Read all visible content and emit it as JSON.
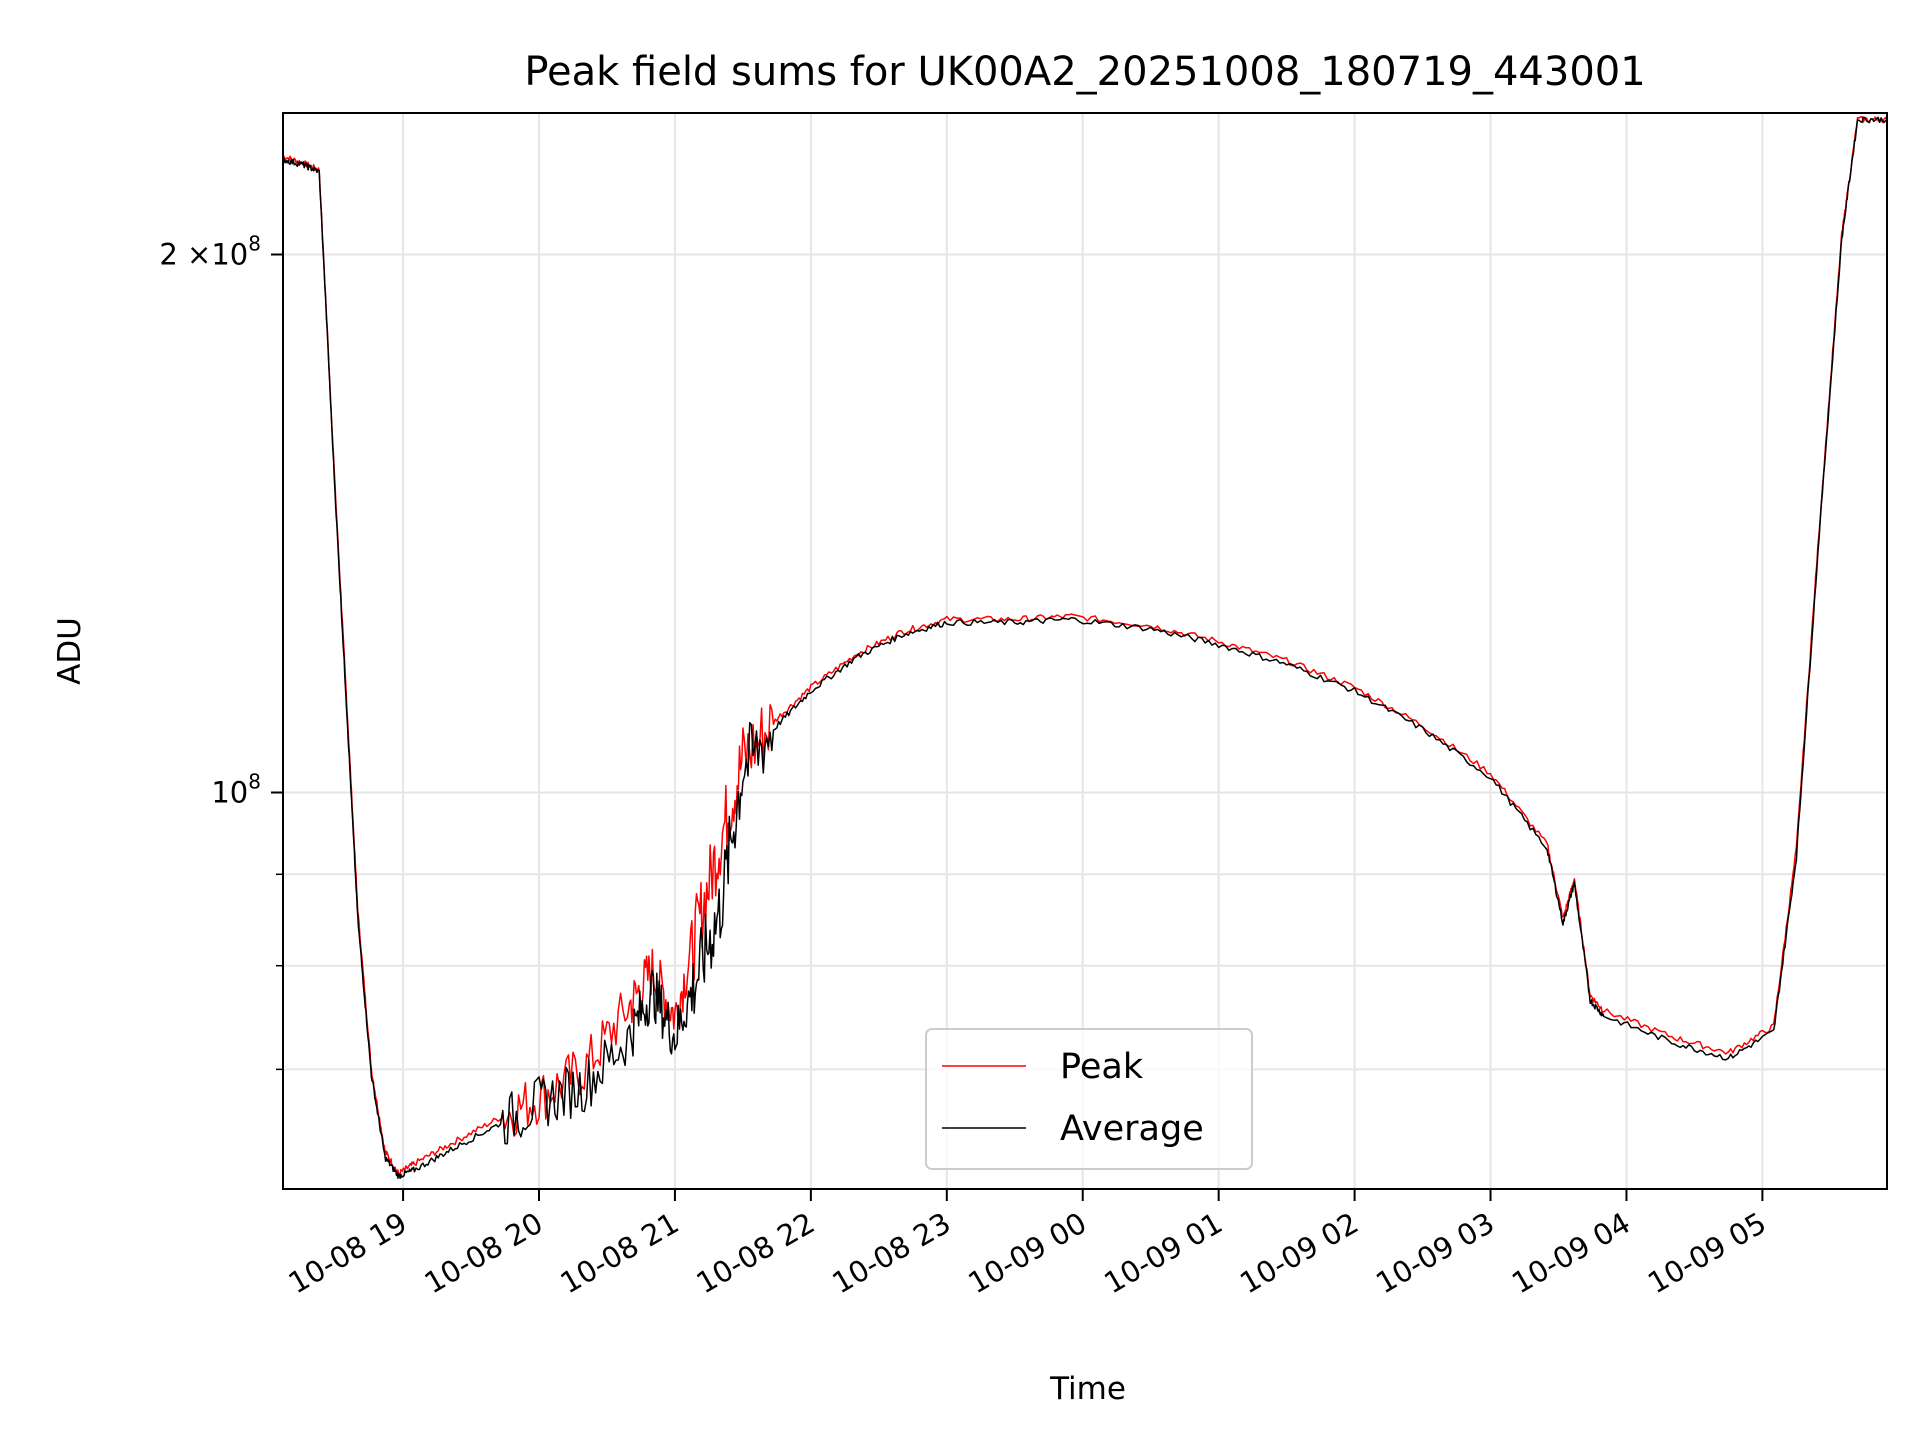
{
  "chart_data": {
    "type": "line",
    "title": "Peak field sums for UK00A2_20251008_180719_443001",
    "xlabel": "Time",
    "ylabel": "ADU",
    "yscale": "log",
    "grid": true,
    "legend": "lower-center",
    "xlim": [
      "2025-10-08 18:07",
      "2025-10-09 05:55"
    ],
    "ylim": [
      60000000,
      240000000
    ],
    "x_ticks": [
      "10-08 19",
      "10-08 20",
      "10-08 21",
      "10-08 22",
      "10-08 23",
      "10-09 00",
      "10-09 01",
      "10-09 02",
      "10-09 03",
      "10-09 04",
      "10-09 05"
    ],
    "x_tick_times": [
      "2025-10-08 19:00",
      "2025-10-08 20:00",
      "2025-10-08 21:00",
      "2025-10-08 22:00",
      "2025-10-08 23:00",
      "2025-10-09 00:00",
      "2025-10-09 01:00",
      "2025-10-09 02:00",
      "2025-10-09 03:00",
      "2025-10-09 04:00",
      "2025-10-09 05:00"
    ],
    "y_major_ticks": [
      {
        "value": 200000000,
        "mant": "2",
        "mid": "×10",
        "exp": "8"
      },
      {
        "value": 100000000,
        "mant": "",
        "mid": "10",
        "exp": "8"
      }
    ],
    "y_minor_ticks": [
      90000000,
      80000000,
      70000000
    ],
    "series": [
      {
        "name": "Peak",
        "color": "#ff0000",
        "x": [
          "2025-10-08 18:07",
          "2025-10-08 18:16",
          "2025-10-08 18:23",
          "2025-10-08 18:30",
          "2025-10-08 18:35",
          "2025-10-08 18:40",
          "2025-10-08 18:46",
          "2025-10-08 18:52",
          "2025-10-08 18:58",
          "2025-10-08 19:05",
          "2025-10-08 19:20",
          "2025-10-08 19:40",
          "2025-10-08 20:00",
          "2025-10-08 20:20",
          "2025-10-08 20:40",
          "2025-10-08 20:50",
          "2025-10-08 21:00",
          "2025-10-08 21:10",
          "2025-10-08 21:20",
          "2025-10-08 21:30",
          "2025-10-08 21:45",
          "2025-10-08 22:00",
          "2025-10-08 22:20",
          "2025-10-08 22:40",
          "2025-10-08 23:00",
          "2025-10-08 23:30",
          "2025-10-08 23:55",
          "2025-10-09 00:30",
          "2025-10-09 01:00",
          "2025-10-09 01:30",
          "2025-10-09 02:00",
          "2025-10-09 02:30",
          "2025-10-09 03:00",
          "2025-10-09 03:25",
          "2025-10-09 03:32",
          "2025-10-09 03:37",
          "2025-10-09 03:44",
          "2025-10-09 03:50",
          "2025-10-09 04:20",
          "2025-10-09 04:45",
          "2025-10-09 05:05",
          "2025-10-09 05:15",
          "2025-10-09 05:25",
          "2025-10-09 05:35",
          "2025-10-09 05:42",
          "2025-10-09 05:55"
        ],
        "values": [
          227000000,
          225000000,
          223000000,
          148000000,
          113000000,
          86000000,
          70000000,
          63000000,
          61200000,
          62000000,
          63500000,
          65500000,
          67500000,
          70000000,
          76000000,
          79500000,
          75000000,
          84000000,
          94000000,
          104500000,
          110000000,
          114500000,
          119500000,
          123000000,
          125000000,
          125000000,
          125500000,
          124000000,
          121500000,
          118500000,
          114500000,
          109000000,
          102500000,
          93500000,
          85000000,
          89500000,
          77000000,
          75500000,
          73000000,
          71500000,
          74000000,
          93000000,
          140000000,
          205000000,
          238000000,
          238000000
        ]
      },
      {
        "name": "Average",
        "color": "#000000",
        "x": [
          "2025-10-08 18:07",
          "2025-10-08 18:16",
          "2025-10-08 18:23",
          "2025-10-08 18:30",
          "2025-10-08 18:35",
          "2025-10-08 18:40",
          "2025-10-08 18:46",
          "2025-10-08 18:52",
          "2025-10-08 18:58",
          "2025-10-08 19:05",
          "2025-10-08 19:20",
          "2025-10-08 19:40",
          "2025-10-08 20:00",
          "2025-10-08 20:20",
          "2025-10-08 20:40",
          "2025-10-08 20:50",
          "2025-10-08 21:00",
          "2025-10-08 21:10",
          "2025-10-08 21:20",
          "2025-10-08 21:30",
          "2025-10-08 21:45",
          "2025-10-08 22:00",
          "2025-10-08 22:20",
          "2025-10-08 22:40",
          "2025-10-08 23:00",
          "2025-10-08 23:30",
          "2025-10-08 23:55",
          "2025-10-09 00:30",
          "2025-10-09 01:00",
          "2025-10-09 01:30",
          "2025-10-09 02:00",
          "2025-10-09 02:30",
          "2025-10-09 03:00",
          "2025-10-09 03:25",
          "2025-10-09 03:32",
          "2025-10-09 03:37",
          "2025-10-09 03:44",
          "2025-10-09 03:50",
          "2025-10-09 04:20",
          "2025-10-09 04:45",
          "2025-10-09 05:05",
          "2025-10-09 05:15",
          "2025-10-09 05:25",
          "2025-10-09 05:35",
          "2025-10-09 05:42",
          "2025-10-09 05:55"
        ],
        "values": [
          226000000,
          224500000,
          222500000,
          147000000,
          112000000,
          85000000,
          69500000,
          62500000,
          61000000,
          61500000,
          63000000,
          65000000,
          67000000,
          68500000,
          73000000,
          77500000,
          73000000,
          79000000,
          86000000,
          103000000,
          109000000,
          114000000,
          119000000,
          122500000,
          124500000,
          124500000,
          125000000,
          123500000,
          121000000,
          118000000,
          114000000,
          108500000,
          102000000,
          93000000,
          84500000,
          89000000,
          76500000,
          75000000,
          72500000,
          71000000,
          73500000,
          92000000,
          139000000,
          204000000,
          238000000,
          238000000
        ]
      }
    ]
  }
}
